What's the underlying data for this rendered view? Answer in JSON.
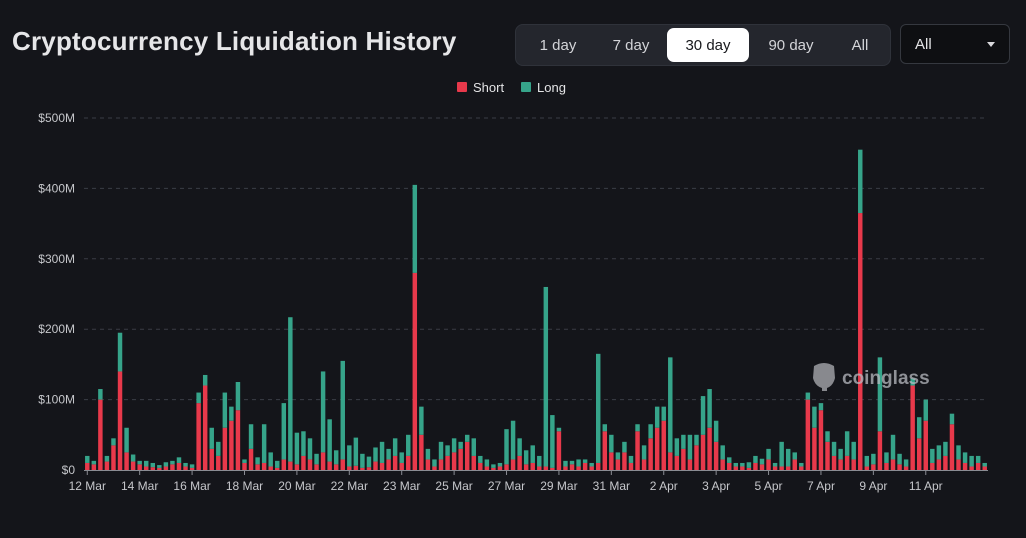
{
  "header": {
    "title": "Cryptocurrency Liquidation History",
    "ranges": [
      {
        "label": "1 day",
        "active": false
      },
      {
        "label": "7 day",
        "active": false
      },
      {
        "label": "30 day",
        "active": true
      },
      {
        "label": "90 day",
        "active": false
      },
      {
        "label": "All",
        "active": false
      }
    ],
    "select": {
      "value": "All"
    }
  },
  "watermark": "coinglass",
  "colors": {
    "short": "#e8394b",
    "long": "#36a48a",
    "grid": "#3a3d45"
  },
  "chart_data": {
    "type": "bar",
    "stacked": true,
    "title": "Cryptocurrency Liquidation History",
    "ylim": [
      0,
      500
    ],
    "yticks": [
      {
        "value": 0,
        "label": "$0"
      },
      {
        "value": 100,
        "label": "$100M"
      },
      {
        "value": 200,
        "label": "$200M"
      },
      {
        "value": 300,
        "label": "$300M"
      },
      {
        "value": 400,
        "label": "$400M"
      },
      {
        "value": 500,
        "label": "$500M"
      }
    ],
    "xticks": [
      {
        "index": 0,
        "label": "12 Mar"
      },
      {
        "index": 8,
        "label": "14 Mar"
      },
      {
        "index": 16,
        "label": "16 Mar"
      },
      {
        "index": 24,
        "label": "18 Mar"
      },
      {
        "index": 32,
        "label": "20 Mar"
      },
      {
        "index": 40,
        "label": "22 Mar"
      },
      {
        "index": 48,
        "label": "23 Mar"
      },
      {
        "index": 56,
        "label": "25 Mar"
      },
      {
        "index": 64,
        "label": "27 Mar"
      },
      {
        "index": 72,
        "label": "29 Mar"
      },
      {
        "index": 80,
        "label": "31 Mar"
      },
      {
        "index": 88,
        "label": "2 Apr"
      },
      {
        "index": 96,
        "label": "3 Apr"
      },
      {
        "index": 104,
        "label": "5 Apr"
      },
      {
        "index": 112,
        "label": "7 Apr"
      },
      {
        "index": 120,
        "label": "9 Apr"
      },
      {
        "index": 128,
        "label": "11 Apr"
      }
    ],
    "legend": [
      "Short",
      "Long"
    ],
    "series": [
      {
        "name": "Short",
        "values": [
          10,
          8,
          100,
          12,
          35,
          140,
          25,
          12,
          8,
          5,
          4,
          3,
          5,
          8,
          10,
          5,
          3,
          95,
          120,
          30,
          20,
          60,
          70,
          85,
          10,
          30,
          8,
          10,
          5,
          3,
          15,
          12,
          8,
          20,
          15,
          8,
          25,
          12,
          8,
          15,
          5,
          6,
          3,
          4,
          12,
          10,
          15,
          20,
          10,
          20,
          280,
          50,
          15,
          5,
          15,
          20,
          25,
          30,
          40,
          20,
          10,
          5,
          3,
          5,
          8,
          15,
          20,
          8,
          10,
          5,
          5,
          3,
          55,
          5,
          8,
          5,
          10,
          5,
          10,
          55,
          25,
          15,
          25,
          10,
          55,
          15,
          45,
          60,
          70,
          25,
          20,
          30,
          15,
          35,
          50,
          60,
          40,
          15,
          10,
          5,
          5,
          3,
          10,
          8,
          15,
          5,
          5,
          5,
          15,
          5,
          100,
          60,
          85,
          40,
          20,
          15,
          20,
          15,
          365,
          5,
          8,
          55,
          10,
          15,
          8,
          5,
          120,
          45,
          70,
          10,
          15,
          20,
          65,
          15,
          10,
          5,
          10,
          5
        ]
      },
      {
        "name": "Long",
        "values": [
          10,
          5,
          15,
          8,
          10,
          55,
          35,
          10,
          5,
          8,
          6,
          4,
          6,
          5,
          8,
          5,
          5,
          15,
          15,
          30,
          20,
          50,
          20,
          40,
          5,
          35,
          10,
          55,
          20,
          10,
          80,
          205,
          45,
          35,
          30,
          15,
          115,
          60,
          20,
          140,
          30,
          40,
          20,
          15,
          20,
          30,
          15,
          25,
          15,
          30,
          125,
          40,
          15,
          10,
          25,
          15,
          20,
          10,
          10,
          25,
          10,
          10,
          5,
          5,
          50,
          55,
          25,
          20,
          25,
          15,
          255,
          75,
          5,
          8,
          5,
          10,
          5,
          5,
          155,
          10,
          25,
          10,
          15,
          10,
          10,
          20,
          20,
          30,
          20,
          135,
          25,
          20,
          35,
          15,
          55,
          55,
          30,
          20,
          8,
          5,
          5,
          8,
          10,
          8,
          15,
          5,
          35,
          25,
          10,
          5,
          10,
          30,
          10,
          15,
          20,
          15,
          35,
          25,
          90,
          15,
          15,
          105,
          15,
          35,
          15,
          10,
          10,
          30,
          30,
          20,
          20,
          20,
          15,
          20,
          15,
          15,
          10,
          5
        ]
      }
    ]
  }
}
